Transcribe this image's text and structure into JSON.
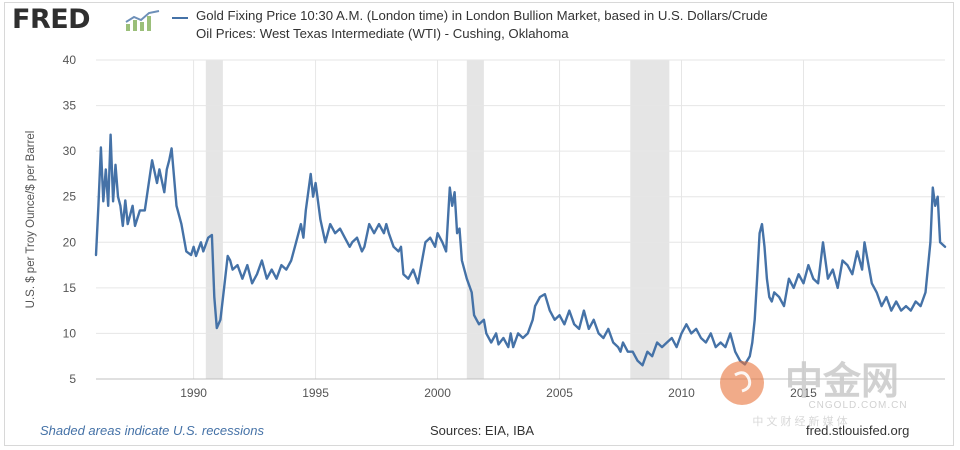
{
  "header": {
    "brand": "FRED",
    "brand_icon": "chart-trend-icon",
    "title_line1": "Gold Fixing Price 10:30 A.M. (London time) in London Bullion Market, based in U.S. Dollars/Crude",
    "title_line2": "Oil Prices: West Texas Intermediate (WTI) - Cushing, Oklahoma"
  },
  "footer": {
    "note": "Shaded areas indicate U.S. recessions",
    "sources": "Sources: EIA, IBA",
    "url": "fred.stlouisfed.org"
  },
  "watermark": {
    "cn_text": "中金网",
    "domain": "CNGOLD.COM.CN",
    "tagline": "中 文 财 经 新 媒 体"
  },
  "colors": {
    "series": "#4572a7",
    "recession": "#e5e5e5",
    "grid": "#e6e6e6"
  },
  "chart_data": {
    "type": "line",
    "title": "Gold Fixing Price 10:30 A.M. (London time) in London Bullion Market, based in U.S. Dollars/Crude Oil Prices: West Texas Intermediate (WTI) - Cushing, Oklahoma",
    "xlabel": "",
    "ylabel": "U.S. $ per Troy Ounce/$ per Barrel",
    "xlim": [
      1986.0,
      2020.8
    ],
    "ylim": [
      5,
      40
    ],
    "yticks": [
      5,
      10,
      15,
      20,
      25,
      30,
      35,
      40
    ],
    "xticks": [
      1990,
      1995,
      2000,
      2005,
      2010,
      2015
    ],
    "grid": true,
    "recessions": [
      [
        1990.5,
        1991.2
      ],
      [
        2001.2,
        2001.9
      ],
      [
        2007.9,
        2009.5
      ]
    ],
    "series": [
      {
        "points": [
          [
            1986.0,
            18.6
          ],
          [
            1986.1,
            24.0
          ],
          [
            1986.2,
            30.4
          ],
          [
            1986.3,
            24.5
          ],
          [
            1986.4,
            28.0
          ],
          [
            1986.5,
            24.0
          ],
          [
            1986.6,
            31.8
          ],
          [
            1986.7,
            24.5
          ],
          [
            1986.8,
            28.5
          ],
          [
            1986.9,
            25.0
          ],
          [
            1987.0,
            24.0
          ],
          [
            1987.1,
            21.8
          ],
          [
            1987.2,
            24.6
          ],
          [
            1987.3,
            22.0
          ],
          [
            1987.5,
            24.0
          ],
          [
            1987.6,
            21.8
          ],
          [
            1987.8,
            23.5
          ],
          [
            1988.0,
            23.5
          ],
          [
            1988.3,
            29.0
          ],
          [
            1988.5,
            26.5
          ],
          [
            1988.6,
            28.0
          ],
          [
            1988.8,
            25.5
          ],
          [
            1988.9,
            28.0
          ],
          [
            1989.0,
            29.0
          ],
          [
            1989.1,
            30.3
          ],
          [
            1989.3,
            24.0
          ],
          [
            1989.5,
            22.0
          ],
          [
            1989.7,
            19.0
          ],
          [
            1989.9,
            18.6
          ],
          [
            1990.0,
            19.5
          ],
          [
            1990.1,
            18.5
          ],
          [
            1990.3,
            20.0
          ],
          [
            1990.4,
            19.0
          ],
          [
            1990.6,
            20.5
          ],
          [
            1990.75,
            20.8
          ],
          [
            1990.85,
            14.0
          ],
          [
            1990.95,
            10.6
          ],
          [
            1991.1,
            11.5
          ],
          [
            1991.25,
            15.0
          ],
          [
            1991.4,
            18.5
          ],
          [
            1991.5,
            18.0
          ],
          [
            1991.6,
            17.0
          ],
          [
            1991.8,
            17.5
          ],
          [
            1992.0,
            16.0
          ],
          [
            1992.2,
            17.5
          ],
          [
            1992.4,
            15.5
          ],
          [
            1992.6,
            16.5
          ],
          [
            1992.8,
            18.0
          ],
          [
            1993.0,
            16.0
          ],
          [
            1993.2,
            17.0
          ],
          [
            1993.4,
            16.0
          ],
          [
            1993.6,
            17.5
          ],
          [
            1993.8,
            17.0
          ],
          [
            1994.0,
            18.0
          ],
          [
            1994.2,
            20.0
          ],
          [
            1994.4,
            22.0
          ],
          [
            1994.5,
            20.5
          ],
          [
            1994.6,
            23.5
          ],
          [
            1994.8,
            27.5
          ],
          [
            1994.9,
            25.0
          ],
          [
            1995.0,
            26.5
          ],
          [
            1995.2,
            22.5
          ],
          [
            1995.4,
            20.0
          ],
          [
            1995.6,
            22.0
          ],
          [
            1995.8,
            21.0
          ],
          [
            1996.0,
            21.5
          ],
          [
            1996.2,
            20.5
          ],
          [
            1996.4,
            19.5
          ],
          [
            1996.5,
            20.0
          ],
          [
            1996.7,
            20.5
          ],
          [
            1996.9,
            19.0
          ],
          [
            1997.0,
            19.5
          ],
          [
            1997.2,
            22.0
          ],
          [
            1997.4,
            21.0
          ],
          [
            1997.6,
            22.0
          ],
          [
            1997.8,
            21.0
          ],
          [
            1997.9,
            22.0
          ],
          [
            1998.0,
            21.0
          ],
          [
            1998.2,
            19.5
          ],
          [
            1998.4,
            19.0
          ],
          [
            1998.5,
            19.5
          ],
          [
            1998.6,
            16.5
          ],
          [
            1998.8,
            16.0
          ],
          [
            1999.0,
            17.0
          ],
          [
            1999.2,
            15.5
          ],
          [
            1999.4,
            18.5
          ],
          [
            1999.5,
            20.0
          ],
          [
            1999.7,
            20.5
          ],
          [
            1999.9,
            19.5
          ],
          [
            2000.0,
            21.0
          ],
          [
            2000.2,
            20.0
          ],
          [
            2000.35,
            19.0
          ],
          [
            2000.5,
            26.0
          ],
          [
            2000.6,
            24.0
          ],
          [
            2000.7,
            25.5
          ],
          [
            2000.8,
            21.0
          ],
          [
            2000.9,
            21.5
          ],
          [
            2001.0,
            18.0
          ],
          [
            2001.2,
            16.0
          ],
          [
            2001.4,
            14.5
          ],
          [
            2001.5,
            12.0
          ],
          [
            2001.7,
            11.0
          ],
          [
            2001.9,
            11.5
          ],
          [
            2002.0,
            10.0
          ],
          [
            2002.2,
            9.0
          ],
          [
            2002.4,
            10.0
          ],
          [
            2002.5,
            8.8
          ],
          [
            2002.7,
            9.5
          ],
          [
            2002.9,
            8.5
          ],
          [
            2003.0,
            10.0
          ],
          [
            2003.1,
            8.5
          ],
          [
            2003.3,
            10.0
          ],
          [
            2003.5,
            9.5
          ],
          [
            2003.7,
            10.0
          ],
          [
            2003.9,
            11.5
          ],
          [
            2004.0,
            13.0
          ],
          [
            2004.2,
            14.0
          ],
          [
            2004.4,
            14.3
          ],
          [
            2004.6,
            12.5
          ],
          [
            2004.8,
            11.5
          ],
          [
            2005.0,
            12.0
          ],
          [
            2005.2,
            11.0
          ],
          [
            2005.4,
            12.5
          ],
          [
            2005.6,
            11.0
          ],
          [
            2005.8,
            10.5
          ],
          [
            2006.0,
            12.5
          ],
          [
            2006.2,
            10.5
          ],
          [
            2006.4,
            11.5
          ],
          [
            2006.6,
            10.0
          ],
          [
            2006.8,
            9.5
          ],
          [
            2007.0,
            10.5
          ],
          [
            2007.2,
            9.0
          ],
          [
            2007.4,
            8.5
          ],
          [
            2007.5,
            8.0
          ],
          [
            2007.6,
            9.0
          ],
          [
            2007.8,
            8.0
          ],
          [
            2008.0,
            8.0
          ],
          [
            2008.2,
            7.0
          ],
          [
            2008.4,
            6.5
          ],
          [
            2008.6,
            8.0
          ],
          [
            2008.8,
            7.5
          ],
          [
            2009.0,
            9.0
          ],
          [
            2009.2,
            8.5
          ],
          [
            2009.4,
            9.0
          ],
          [
            2009.6,
            9.5
          ],
          [
            2009.8,
            8.5
          ],
          [
            2010.0,
            10.0
          ],
          [
            2010.2,
            11.0
          ],
          [
            2010.4,
            10.0
          ],
          [
            2010.6,
            10.5
          ],
          [
            2010.8,
            9.5
          ],
          [
            2011.0,
            9.0
          ],
          [
            2011.2,
            10.0
          ],
          [
            2011.4,
            8.5
          ],
          [
            2011.6,
            9.0
          ],
          [
            2011.8,
            8.5
          ],
          [
            2012.0,
            10.0
          ],
          [
            2012.2,
            8.0
          ],
          [
            2012.4,
            7.0
          ],
          [
            2012.6,
            6.6
          ],
          [
            2012.8,
            7.5
          ],
          [
            2012.9,
            9.0
          ],
          [
            2013.0,
            11.5
          ],
          [
            2013.1,
            16.0
          ],
          [
            2013.2,
            21.0
          ],
          [
            2013.3,
            22.0
          ],
          [
            2013.4,
            19.5
          ],
          [
            2013.5,
            16.0
          ],
          [
            2013.6,
            14.0
          ],
          [
            2013.7,
            13.5
          ],
          [
            2013.8,
            14.5
          ],
          [
            2014.0,
            14.0
          ],
          [
            2014.2,
            13.0
          ],
          [
            2014.4,
            16.0
          ],
          [
            2014.6,
            15.0
          ],
          [
            2014.8,
            16.5
          ],
          [
            2015.0,
            15.5
          ],
          [
            2015.2,
            17.5
          ],
          [
            2015.4,
            16.0
          ],
          [
            2015.6,
            15.5
          ],
          [
            2015.8,
            20.0
          ],
          [
            2016.0,
            16.0
          ],
          [
            2016.2,
            17.0
          ],
          [
            2016.4,
            15.0
          ],
          [
            2016.6,
            18.0
          ],
          [
            2016.8,
            17.5
          ],
          [
            2017.0,
            16.5
          ],
          [
            2017.2,
            19.0
          ],
          [
            2017.4,
            17.0
          ],
          [
            2017.5,
            20.0
          ],
          [
            2017.6,
            18.5
          ],
          [
            2017.8,
            15.5
          ],
          [
            2018.0,
            14.5
          ],
          [
            2018.2,
            13.0
          ],
          [
            2018.4,
            14.0
          ],
          [
            2018.6,
            12.5
          ],
          [
            2018.8,
            13.5
          ],
          [
            2019.0,
            12.5
          ],
          [
            2019.2,
            13.0
          ],
          [
            2019.4,
            12.5
          ],
          [
            2019.6,
            13.5
          ],
          [
            2019.8,
            13.0
          ],
          [
            2020.0,
            14.5
          ],
          [
            2020.2,
            20.0
          ],
          [
            2020.3,
            26.0
          ],
          [
            2020.4,
            24.0
          ],
          [
            2020.5,
            25.0
          ],
          [
            2020.6,
            20.0
          ],
          [
            2020.8,
            19.5
          ]
        ]
      }
    ]
  }
}
